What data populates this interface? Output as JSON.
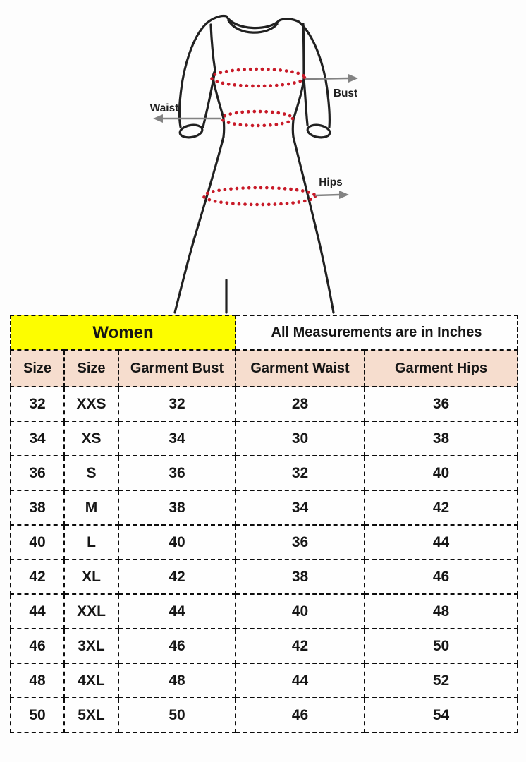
{
  "figure": {
    "labels": {
      "bust": "Bust",
      "waist": "Waist",
      "hips": "Hips"
    },
    "colors": {
      "outline": "#212121",
      "measure_dots": "#c81a28",
      "arrow": "#838383",
      "label_text": "#1f1f1f"
    }
  },
  "table": {
    "group_header": {
      "women": "Women",
      "note": "All Measurements are in Inches"
    },
    "columns": [
      "Size",
      "Size",
      "Garment Bust",
      "Garment Waist",
      "Garment Hips"
    ],
    "rows": [
      [
        "32",
        "XXS",
        "32",
        "28",
        "36"
      ],
      [
        "34",
        "XS",
        "34",
        "30",
        "38"
      ],
      [
        "36",
        "S",
        "36",
        "32",
        "40"
      ],
      [
        "38",
        "M",
        "38",
        "34",
        "42"
      ],
      [
        "40",
        "L",
        "40",
        "36",
        "44"
      ],
      [
        "42",
        "XL",
        "42",
        "38",
        "46"
      ],
      [
        "44",
        "XXL",
        "44",
        "40",
        "48"
      ],
      [
        "46",
        "3XL",
        "46",
        "42",
        "50"
      ],
      [
        "48",
        "4XL",
        "48",
        "44",
        "52"
      ],
      [
        "50",
        "5XL",
        "50",
        "46",
        "54"
      ]
    ],
    "colors": {
      "women_bg": "#fdfd00",
      "header_bg": "#f6ddce",
      "border": "#0d0d0d",
      "cell_bg": "#fefefe"
    }
  }
}
